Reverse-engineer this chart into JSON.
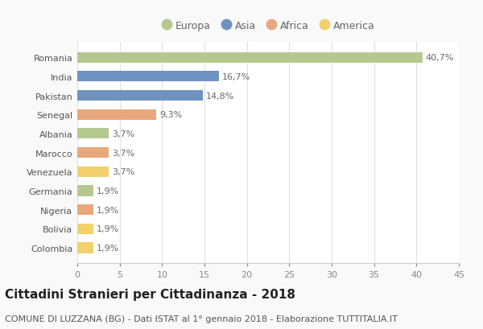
{
  "countries": [
    "Romania",
    "India",
    "Pakistan",
    "Senegal",
    "Albania",
    "Marocco",
    "Venezuela",
    "Germania",
    "Nigeria",
    "Bolivia",
    "Colombia"
  ],
  "values": [
    40.7,
    16.7,
    14.8,
    9.3,
    3.7,
    3.7,
    3.7,
    1.9,
    1.9,
    1.9,
    1.9
  ],
  "labels": [
    "40,7%",
    "16,7%",
    "14,8%",
    "9,3%",
    "3,7%",
    "3,7%",
    "3,7%",
    "1,9%",
    "1,9%",
    "1,9%",
    "1,9%"
  ],
  "continents": [
    "Europa",
    "Asia",
    "Asia",
    "Africa",
    "Europa",
    "Africa",
    "America",
    "Europa",
    "Africa",
    "America",
    "America"
  ],
  "colors": {
    "Europa": "#b5c98e",
    "Asia": "#6f93c0",
    "Africa": "#e8a87c",
    "America": "#f2d06b"
  },
  "legend_order": [
    "Europa",
    "Asia",
    "Africa",
    "America"
  ],
  "xlim": [
    0,
    45
  ],
  "xticks": [
    0,
    5,
    10,
    15,
    20,
    25,
    30,
    35,
    40,
    45
  ],
  "title": "Cittadini Stranieri per Cittadinanza - 2018",
  "subtitle": "COMUNE DI LUZZANA (BG) - Dati ISTAT al 1° gennaio 2018 - Elaborazione TUTTITALIA.IT",
  "bg_color": "#f9f9f9",
  "plot_bg_color": "#ffffff",
  "grid_color": "#e0e0e0",
  "bar_height": 0.55,
  "title_fontsize": 11,
  "subtitle_fontsize": 8,
  "label_fontsize": 8,
  "tick_fontsize": 8,
  "legend_fontsize": 9
}
